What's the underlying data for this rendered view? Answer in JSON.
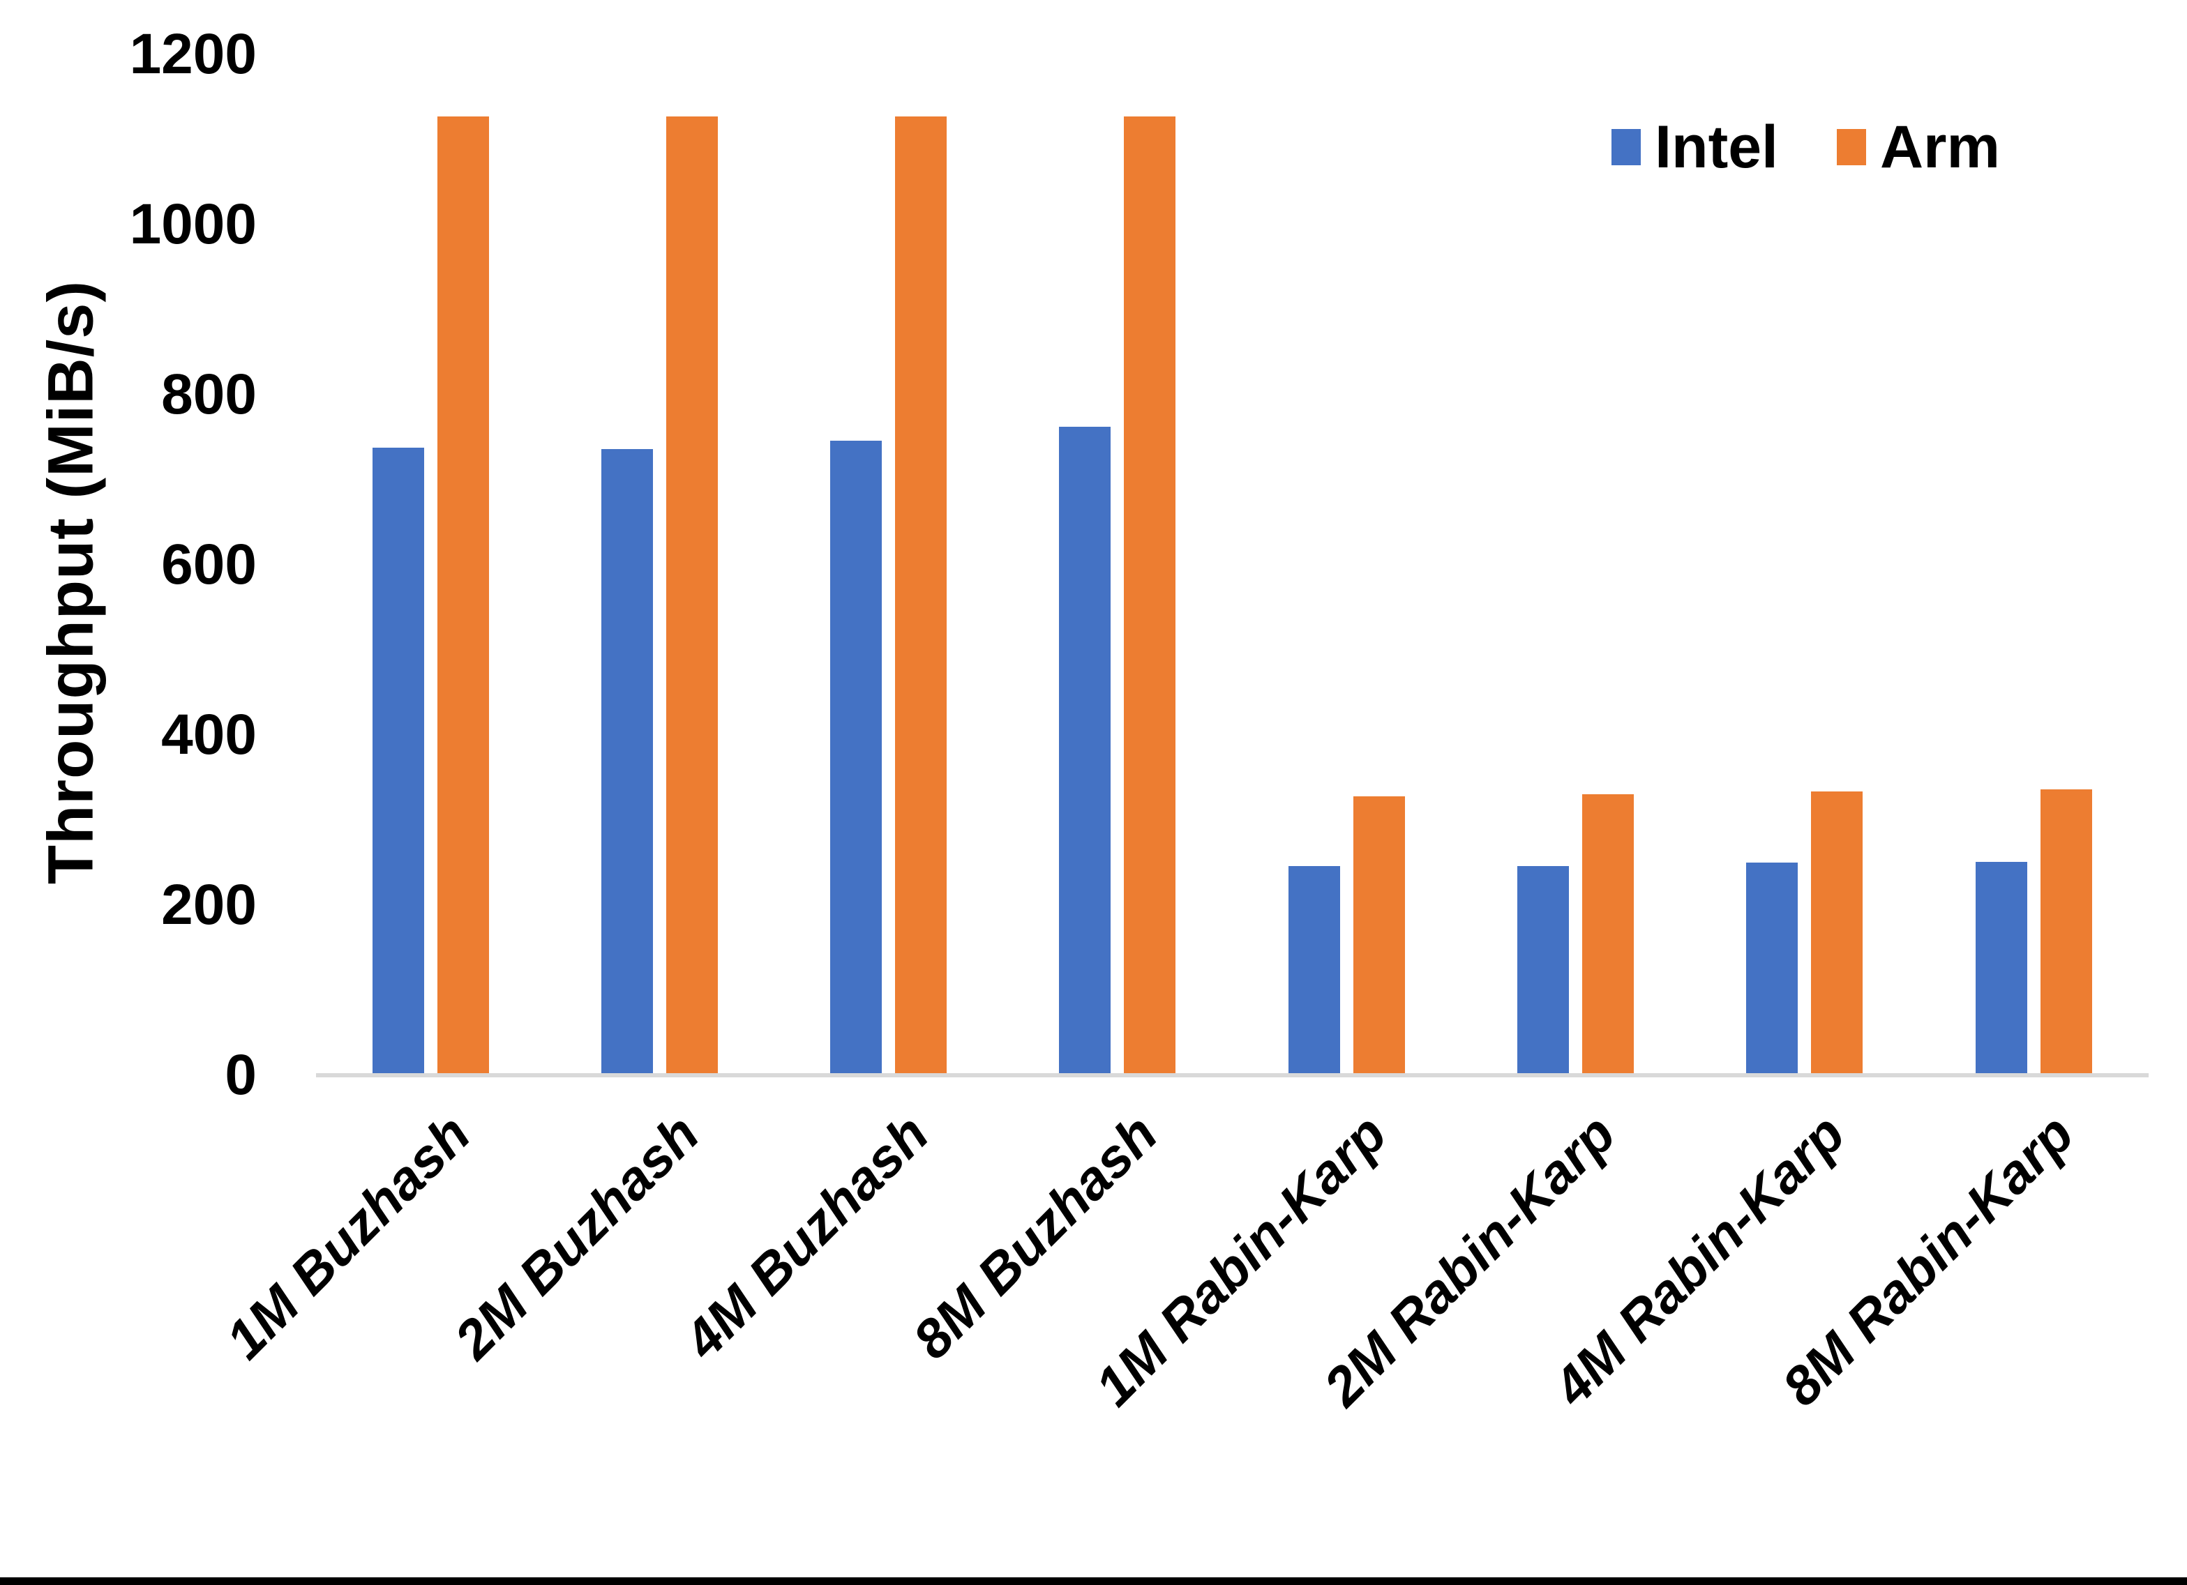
{
  "chart_data": {
    "type": "bar",
    "title": "",
    "categories": [
      "1M Buzhash",
      "2M Buzhash",
      "4M Buzhash",
      "8M Buzhash",
      "1M Rabin-Karp",
      "2M Rabin-Karp",
      "4M Rabin-Karp",
      "8M Rabin-Karp"
    ],
    "series": [
      {
        "name": "Intel",
        "color": "#4472C4",
        "values": [
          738,
          736,
          746,
          762,
          246,
          246,
          250,
          251
        ]
      },
      {
        "name": "Arm",
        "color": "#ED7D31",
        "values": [
          1127,
          1127,
          1127,
          1127,
          328,
          330,
          334,
          336
        ]
      }
    ],
    "xlabel": "",
    "ylabel": "Throughput (MiB/s)",
    "ylim": [
      0,
      1200
    ],
    "yticks": [
      0,
      200,
      400,
      600,
      800,
      1000,
      1200
    ],
    "grid": false,
    "legend_position": "top-right",
    "x_tick_style": "italic, rotated 45deg",
    "bar_orientation": "vertical"
  },
  "colors": {
    "background": "#FFFFFF",
    "text": "#000000",
    "axis_line": "#D9D9D9",
    "bottom_border": "#000000"
  }
}
